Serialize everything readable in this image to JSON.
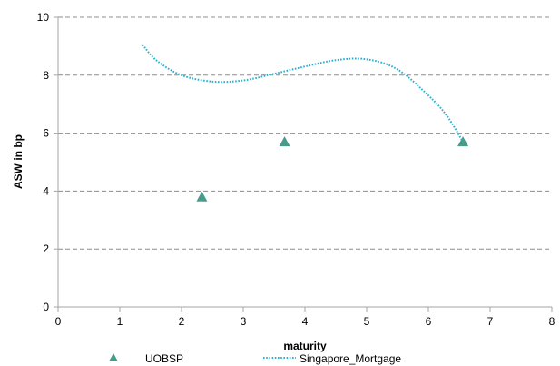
{
  "chart_data": {
    "type": "scatter",
    "xlabel": "maturity",
    "ylabel": "ASW in bp",
    "xlim": [
      0,
      8
    ],
    "ylim": [
      0,
      10
    ],
    "x_ticks": [
      0,
      1,
      2,
      3,
      4,
      5,
      6,
      7,
      8
    ],
    "y_ticks": [
      0,
      2,
      4,
      6,
      8,
      10
    ],
    "grid": "horizontal dashed",
    "legend_position": "bottom",
    "series": [
      {
        "name": "UOBSP",
        "kind": "markers",
        "marker": "triangle",
        "color": "#4a9a8a",
        "points": [
          {
            "x": 2.33,
            "y": 3.8
          },
          {
            "x": 3.67,
            "y": 5.7
          },
          {
            "x": 6.56,
            "y": 5.7
          }
        ]
      },
      {
        "name": "Singapore_Mortgage",
        "kind": "dotted-curve",
        "color": "#2ab0d0",
        "points": [
          {
            "x": 1.37,
            "y": 9.05
          },
          {
            "x": 1.6,
            "y": 8.5
          },
          {
            "x": 2.0,
            "y": 8.0
          },
          {
            "x": 2.5,
            "y": 7.78
          },
          {
            "x": 3.0,
            "y": 7.82
          },
          {
            "x": 3.5,
            "y": 8.05
          },
          {
            "x": 4.0,
            "y": 8.3
          },
          {
            "x": 4.5,
            "y": 8.52
          },
          {
            "x": 5.0,
            "y": 8.55
          },
          {
            "x": 5.5,
            "y": 8.2
          },
          {
            "x": 6.0,
            "y": 7.3
          },
          {
            "x": 6.3,
            "y": 6.6
          },
          {
            "x": 6.56,
            "y": 5.7
          }
        ]
      }
    ]
  }
}
